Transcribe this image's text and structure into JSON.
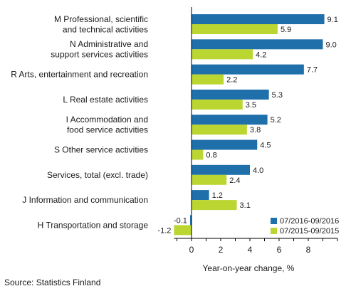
{
  "source": "Source: Statistics Finland",
  "colors": {
    "series_2016": "#1f6fab",
    "series_2015": "#bcd631",
    "axis": "#000000"
  },
  "chart_data": {
    "type": "bar",
    "orientation": "horizontal",
    "categories": [
      [
        "M Professional, scientific",
        "and technical activities"
      ],
      [
        "N Administrative and",
        "support services activities"
      ],
      [
        "R Arts, entertainment and recreation"
      ],
      [
        "L Real estate activities"
      ],
      [
        "I Accommodation and",
        "food service activities"
      ],
      [
        "S Other service activities"
      ],
      [
        "Services, total (excl. trade)"
      ],
      [
        "J Information and communication"
      ],
      [
        "H Transportation and storage"
      ]
    ],
    "series": [
      {
        "name": "07/2016-09/2016",
        "values": [
          9.1,
          9.0,
          7.7,
          5.3,
          5.2,
          4.5,
          4.0,
          1.2,
          -0.1
        ]
      },
      {
        "name": "07/2015-09/2015",
        "values": [
          5.9,
          4.2,
          2.2,
          3.5,
          3.8,
          0.8,
          2.4,
          3.1,
          -1.2
        ]
      }
    ],
    "xlabel": "Year-on-year change, %",
    "xticks": [
      0,
      2,
      4,
      6,
      8
    ],
    "xlim": [
      -1.2,
      10
    ],
    "grid": false,
    "legend_position": "bottom-right"
  }
}
